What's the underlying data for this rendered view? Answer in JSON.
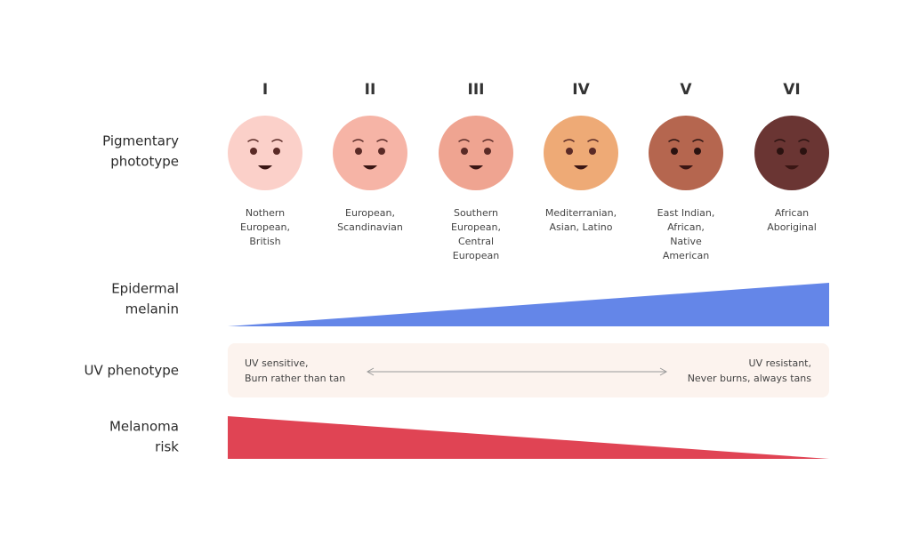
{
  "row_labels": {
    "pigmentary": [
      "Pigmentary",
      "phototype"
    ],
    "melanin": [
      "Epidermal",
      "melanin"
    ],
    "uv": [
      "UV phenotype"
    ],
    "melanoma": [
      "Melanoma",
      "risk"
    ]
  },
  "phototypes": [
    {
      "numeral": "I",
      "color": "#fbd0c9",
      "description": [
        "Nothern",
        "European,",
        "British"
      ]
    },
    {
      "numeral": "II",
      "color": "#f6b4a6",
      "description": [
        "European,",
        "Scandinavian"
      ]
    },
    {
      "numeral": "III",
      "color": "#efa491",
      "description": [
        "Southern",
        "European,",
        "Central",
        "European"
      ]
    },
    {
      "numeral": "IV",
      "color": "#eeaa76",
      "description": [
        "Mediterranian,",
        "Asian, Latino"
      ]
    },
    {
      "numeral": "V",
      "color": "#b5664f",
      "description": [
        "East Indian,",
        "African,",
        "Native",
        "American"
      ]
    },
    {
      "numeral": "VI",
      "color": "#6a3533",
      "description": [
        "African",
        "Aboriginal"
      ]
    }
  ],
  "uv_phenotype": {
    "left": [
      "UV sensitive,",
      "Burn rather than tan"
    ],
    "right": [
      "UV resistant,",
      "Never burns, always tans"
    ]
  }
}
